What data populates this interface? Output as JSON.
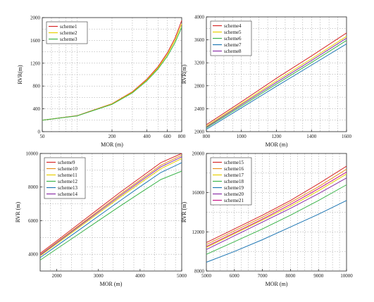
{
  "chart_data": [
    {
      "type": "line",
      "xlabel": "MOR (m)",
      "ylabel": "RVR(m)",
      "xscale": "log",
      "xlim": [
        50,
        800
      ],
      "ylim": [
        0,
        2000
      ],
      "xticks": [
        50,
        200,
        400,
        600,
        800
      ],
      "yticks": [
        0,
        400,
        800,
        1200,
        1600,
        2000
      ],
      "legend_position": "top-left",
      "grid": true,
      "series": [
        {
          "name": "scheme1",
          "color": "#d62728",
          "x": [
            50,
            100,
            200,
            300,
            400,
            500,
            600,
            700,
            800
          ],
          "y": [
            200,
            280,
            490,
            700,
            920,
            1140,
            1380,
            1640,
            1950
          ]
        },
        {
          "name": "scheme2",
          "color": "#e8d000",
          "x": [
            50,
            100,
            200,
            300,
            400,
            500,
            600,
            700,
            800
          ],
          "y": [
            200,
            278,
            485,
            690,
            905,
            1120,
            1350,
            1600,
            1890
          ]
        },
        {
          "name": "scheme3",
          "color": "#3cb44b",
          "x": [
            50,
            100,
            200,
            300,
            400,
            500,
            600,
            700,
            800
          ],
          "y": [
            200,
            276,
            478,
            680,
            890,
            1100,
            1320,
            1560,
            1830
          ]
        }
      ]
    },
    {
      "type": "line",
      "xlabel": "MOR (m)",
      "ylabel": "RVR(m)",
      "xlim": [
        800,
        1600
      ],
      "ylim": [
        2000,
        4000
      ],
      "xticks": [
        800,
        1000,
        1200,
        1400,
        1600
      ],
      "yticks": [
        2000,
        2400,
        2800,
        3200,
        3600,
        4000
      ],
      "legend_position": "top-left",
      "grid": true,
      "series": [
        {
          "name": "scheme4",
          "color": "#d62728",
          "x": [
            800,
            1000,
            1200,
            1400,
            1600
          ],
          "y": [
            2120,
            2520,
            2930,
            3320,
            3720
          ]
        },
        {
          "name": "scheme5",
          "color": "#e8d000",
          "x": [
            800,
            1000,
            1200,
            1400,
            1600
          ],
          "y": [
            2095,
            2490,
            2890,
            3270,
            3660
          ]
        },
        {
          "name": "scheme6",
          "color": "#3cb44b",
          "x": [
            800,
            1000,
            1200,
            1400,
            1600
          ],
          "y": [
            2065,
            2445,
            2830,
            3205,
            3590
          ]
        },
        {
          "name": "scheme7",
          "color": "#1f77b4",
          "x": [
            800,
            1000,
            1200,
            1400,
            1600
          ],
          "y": [
            2040,
            2415,
            2790,
            3160,
            3530
          ]
        },
        {
          "name": "scheme8",
          "color": "#8b2fa8",
          "x": [
            800,
            1000,
            1200,
            1400,
            1600
          ],
          "y": [
            2080,
            2470,
            2860,
            3240,
            3630
          ]
        }
      ]
    },
    {
      "type": "line",
      "xlabel": "MOR (m)",
      "ylabel": "RVR (m)",
      "xlim": [
        1600,
        5000
      ],
      "ylim": [
        3000,
        10000
      ],
      "xticks": [
        2000,
        3000,
        4000,
        5000
      ],
      "yticks": [
        4000,
        6000,
        8000,
        10000
      ],
      "legend_position": "top-left",
      "grid": true,
      "series": [
        {
          "name": "scheme9",
          "color": "#d62728",
          "x": [
            1600,
            2000,
            2500,
            3000,
            3500,
            4000,
            4500,
            5000
          ],
          "y": [
            4050,
            4800,
            5750,
            6700,
            7650,
            8550,
            9450,
            10000
          ]
        },
        {
          "name": "scheme10",
          "color": "#e89020",
          "x": [
            1600,
            2000,
            2500,
            3000,
            3500,
            4000,
            4500,
            5000
          ],
          "y": [
            3980,
            4720,
            5650,
            6590,
            7520,
            8420,
            9300,
            9900
          ]
        },
        {
          "name": "scheme11",
          "color": "#e8d000",
          "x": [
            1600,
            2000,
            2500,
            3000,
            3500,
            4000,
            4500,
            5000
          ],
          "y": [
            3900,
            4620,
            5530,
            6440,
            7350,
            8230,
            9090,
            9700
          ]
        },
        {
          "name": "scheme12",
          "color": "#3cb44b",
          "x": [
            1600,
            2000,
            2500,
            3000,
            3500,
            4000,
            4500,
            5000
          ],
          "y": [
            3650,
            4320,
            5160,
            6000,
            6830,
            7650,
            8450,
            8950
          ]
        },
        {
          "name": "scheme13",
          "color": "#1f77b4",
          "x": [
            1600,
            2000,
            2500,
            3000,
            3500,
            4000,
            4500,
            5000
          ],
          "y": [
            3800,
            4500,
            5380,
            6270,
            7150,
            8020,
            8870,
            9450
          ]
        },
        {
          "name": "scheme14",
          "color": "#8b2fa8",
          "x": [
            1600,
            2000,
            2500,
            3000,
            3500,
            4000,
            4500,
            5000
          ],
          "y": [
            3950,
            4680,
            5600,
            6520,
            7440,
            8330,
            9200,
            9800
          ]
        }
      ]
    },
    {
      "type": "line",
      "xlabel": "MOR (m)",
      "ylabel": "RVR (m)",
      "xlim": [
        5000,
        10000
      ],
      "ylim": [
        8000,
        20000
      ],
      "xticks": [
        5000,
        6000,
        7000,
        8000,
        9000,
        10000
      ],
      "yticks": [
        8000,
        12000,
        16000,
        20000
      ],
      "legend_position": "top-left",
      "grid": true,
      "series": [
        {
          "name": "scheme15",
          "color": "#d62728",
          "x": [
            5000,
            6000,
            7000,
            8000,
            9000,
            10000
          ],
          "y": [
            10900,
            12300,
            13700,
            15200,
            16900,
            18700
          ]
        },
        {
          "name": "scheme16",
          "color": "#e89020",
          "x": [
            5000,
            6000,
            7000,
            8000,
            9000,
            10000
          ],
          "y": [
            10700,
            12100,
            13500,
            15000,
            16600,
            18400
          ]
        },
        {
          "name": "scheme17",
          "color": "#e8d000",
          "x": [
            5000,
            6000,
            7000,
            8000,
            9000,
            10000
          ],
          "y": [
            10400,
            11800,
            13200,
            14600,
            16200,
            17900
          ]
        },
        {
          "name": "scheme18",
          "color": "#3cb44b",
          "x": [
            5000,
            6000,
            7000,
            8000,
            9000,
            10000
          ],
          "y": [
            9700,
            11000,
            12300,
            13700,
            15200,
            16800
          ]
        },
        {
          "name": "scheme19",
          "color": "#1f77b4",
          "x": [
            5000,
            6000,
            7000,
            8000,
            9000,
            10000
          ],
          "y": [
            8900,
            10000,
            11200,
            12500,
            13800,
            15200
          ]
        },
        {
          "name": "scheme20",
          "color": "#8b2fa8",
          "x": [
            5000,
            6000,
            7000,
            8000,
            9000,
            10000
          ],
          "y": [
            10200,
            11600,
            13000,
            14400,
            15900,
            17500
          ]
        },
        {
          "name": "scheme21",
          "color": "#c71585",
          "x": [
            5000,
            6000,
            7000,
            8000,
            9000,
            10000
          ],
          "y": [
            10500,
            11900,
            13300,
            14800,
            16400,
            18100
          ]
        }
      ]
    }
  ]
}
